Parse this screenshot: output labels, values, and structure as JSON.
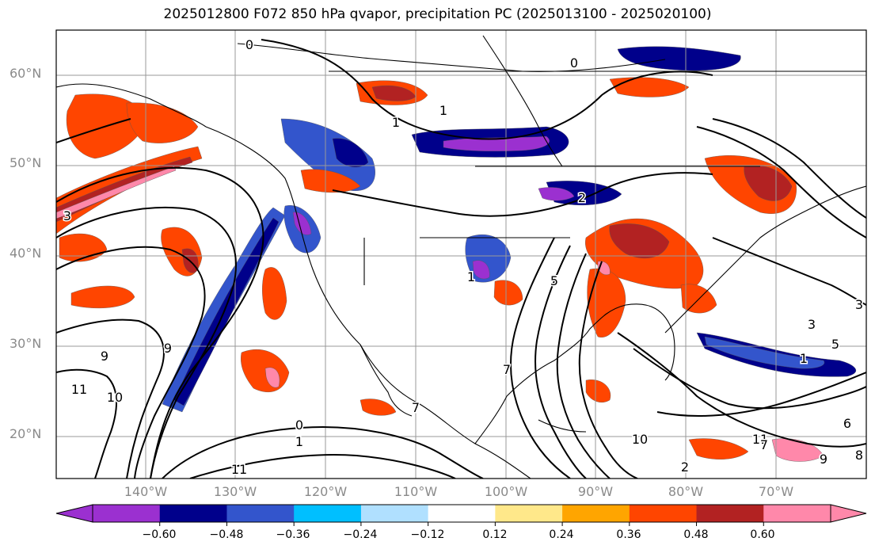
{
  "title": "2025012800 F072 850 hPa qvapor, precipitation PC (2025013100 - 2025020100)",
  "latitude_labels": [
    "60°N",
    "50°N",
    "40°N",
    "30°N",
    "20°N"
  ],
  "longitude_labels": [
    "140°W",
    "130°W",
    "120°W",
    "110°W",
    "100°W",
    "90°W",
    "80°W",
    "70°W"
  ],
  "colorbar": {
    "ticks": [
      "−0.60",
      "−0.48",
      "−0.36",
      "−0.24",
      "−0.12",
      "0.12",
      "0.24",
      "0.36",
      "0.48",
      "0.60"
    ],
    "colors": [
      "#9b30d0",
      "#00008b",
      "#3355cc",
      "#00bfff",
      "#b0e0ff",
      "#ffffff",
      "#ffe88a",
      "#ffa500",
      "#ff4500",
      "#b22222",
      "#ff88aa"
    ]
  },
  "contour_labels": [
    "0",
    "1",
    "3",
    "9",
    "11",
    "10",
    "7",
    "5",
    "2",
    "0",
    "1",
    "3",
    "1",
    "3",
    "5",
    "7",
    "10",
    "11",
    "9",
    "6",
    "8",
    "11",
    "9",
    "1",
    "0",
    "1",
    "2",
    "7"
  ]
}
